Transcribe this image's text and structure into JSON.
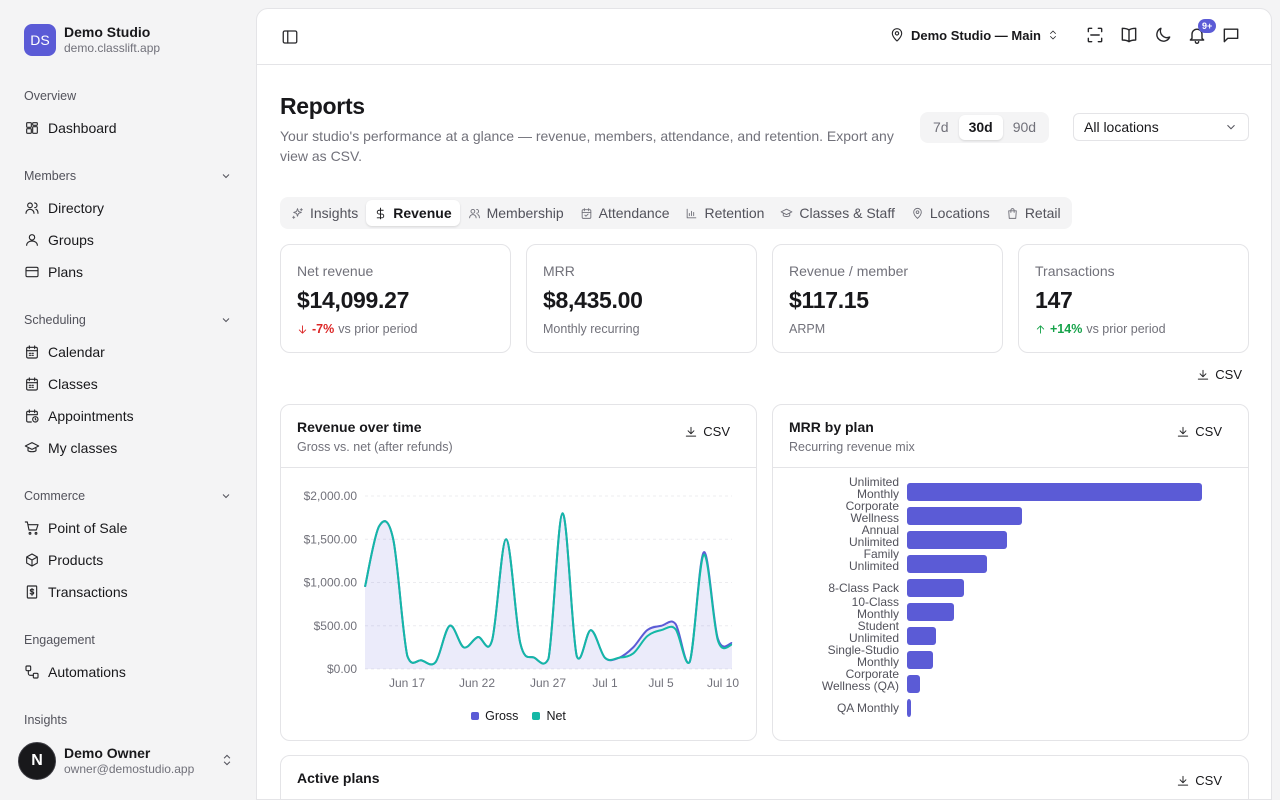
{
  "brand": {
    "initials": "DS",
    "name": "Demo Studio",
    "domain": "demo.classlift.app"
  },
  "sidebar": {
    "groups": [
      {
        "label": "Overview",
        "items": [
          {
            "label": "Dashboard",
            "icon": "dashboard-icon"
          }
        ]
      },
      {
        "label": "Members",
        "items": [
          {
            "label": "Directory",
            "icon": "users-icon"
          },
          {
            "label": "Groups",
            "icon": "user-icon"
          },
          {
            "label": "Plans",
            "icon": "card-icon"
          }
        ]
      },
      {
        "label": "Scheduling",
        "items": [
          {
            "label": "Calendar",
            "icon": "calendar-icon"
          },
          {
            "label": "Classes",
            "icon": "calendar-icon"
          },
          {
            "label": "Appointments",
            "icon": "calendar-clock-icon"
          },
          {
            "label": "My classes",
            "icon": "graduation-cap-icon"
          }
        ]
      },
      {
        "label": "Commerce",
        "items": [
          {
            "label": "Point of Sale",
            "icon": "cart-icon"
          },
          {
            "label": "Products",
            "icon": "box-icon"
          },
          {
            "label": "Transactions",
            "icon": "receipt-icon"
          }
        ]
      },
      {
        "label": "Engagement",
        "items": [
          {
            "label": "Automations",
            "icon": "workflow-icon"
          }
        ]
      },
      {
        "label": "Insights",
        "items": []
      }
    ]
  },
  "user": {
    "initial": "N",
    "name": "Demo Owner",
    "email": "owner@demostudio.app"
  },
  "topbar": {
    "location": "Demo Studio — Main",
    "notifications_badge": "9+"
  },
  "page": {
    "title": "Reports",
    "description": "Your studio's performance at a glance — revenue, members, attendance, and retention. Export any view as CSV.",
    "ranges": [
      "7d",
      "30d",
      "90d"
    ],
    "active_range": "30d",
    "location_filter": "All locations"
  },
  "tabs": [
    {
      "label": "Insights",
      "icon": "sparkles-icon",
      "active": false
    },
    {
      "label": "Revenue",
      "icon": "dollar-icon",
      "active": true
    },
    {
      "label": "Membership",
      "icon": "users-icon",
      "active": false
    },
    {
      "label": "Attendance",
      "icon": "calendar-check-icon",
      "active": false
    },
    {
      "label": "Retention",
      "icon": "bar-chart-icon",
      "active": false
    },
    {
      "label": "Classes & Staff",
      "icon": "graduation-cap-icon",
      "active": false
    },
    {
      "label": "Locations",
      "icon": "map-pin-icon",
      "active": false
    },
    {
      "label": "Retail",
      "icon": "shopping-bag-icon",
      "active": false
    }
  ],
  "kpis": [
    {
      "label": "Net revenue",
      "value": "$14,099.27",
      "delta": "-7%",
      "delta_dir": "down",
      "sub": "vs prior period"
    },
    {
      "label": "MRR",
      "value": "$8,435.00",
      "delta": "",
      "sub": "Monthly recurring"
    },
    {
      "label": "Revenue / member",
      "value": "$117.15",
      "delta": "",
      "sub": "ARPM"
    },
    {
      "label": "Transactions",
      "value": "147",
      "delta": "+14%",
      "delta_dir": "up",
      "sub": "vs prior period"
    }
  ],
  "csv_label": "CSV",
  "colors": {
    "accent": "#5b5bd6",
    "net": "#14b8a6",
    "negative": "#dc2626",
    "positive": "#16a34a"
  },
  "revenue_card": {
    "title": "Revenue over time",
    "subtitle": "Gross vs. net (after refunds)"
  },
  "mrr_card": {
    "title": "MRR by plan",
    "subtitle": "Recurring revenue mix"
  },
  "active_plans_card": {
    "title": "Active plans"
  },
  "chart_data": [
    {
      "type": "area",
      "title": "Revenue over time",
      "ylim": [
        0,
        2000
      ],
      "y_ticks": [
        "$0.00",
        "$500.00",
        "$1,000.00",
        "$1,500.00",
        "$2,000.00"
      ],
      "x_ticks": [
        "Jun 17",
        "Jun 22",
        "Jun 27",
        "Jul 1",
        "Jul 5",
        "Jul 10"
      ],
      "grid": true,
      "legend": "bottom",
      "series": [
        {
          "name": "Gross",
          "values": [
            950,
            1650,
            1500,
            150,
            100,
            80,
            500,
            250,
            370,
            330,
            1500,
            300,
            130,
            120,
            1800,
            150,
            450,
            130,
            130,
            250,
            450,
            500,
            520,
            80,
            1350,
            350,
            300
          ]
        },
        {
          "name": "Net",
          "values": [
            950,
            1650,
            1500,
            150,
            100,
            80,
            500,
            250,
            370,
            330,
            1500,
            300,
            130,
            120,
            1800,
            150,
            450,
            130,
            130,
            180,
            380,
            450,
            460,
            80,
            1320,
            330,
            280
          ]
        }
      ]
    },
    {
      "type": "bar",
      "orientation": "horizontal",
      "title": "MRR by plan",
      "categories": [
        "Unlimited Monthly",
        "Corporate Wellness",
        "Annual Unlimited",
        "Family Unlimited",
        "8-Class Pack",
        "10-Class Monthly",
        "Student Unlimited",
        "Single-Studio Monthly",
        "Corporate Wellness (QA)",
        "QA Monthly"
      ],
      "values": [
        2950,
        1150,
        1000,
        800,
        570,
        470,
        290,
        260,
        130,
        40
      ]
    }
  ]
}
